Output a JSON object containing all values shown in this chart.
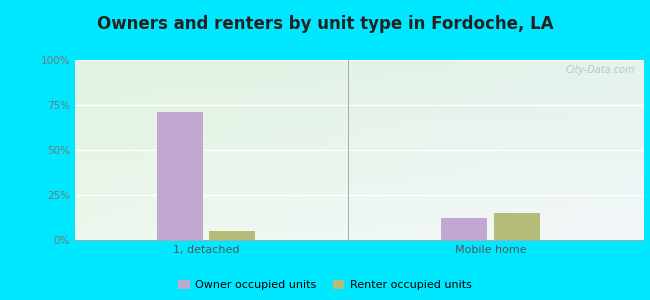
{
  "title": "Owners and renters by unit type in Fordoche, LA",
  "categories": [
    "1, detached",
    "Mobile home"
  ],
  "owner_values": [
    71,
    12
  ],
  "renter_values": [
    5,
    15
  ],
  "owner_color": "#c2a8d0",
  "renter_color": "#b5bc7a",
  "yticks": [
    0,
    25,
    50,
    75,
    100
  ],
  "ytick_labels": [
    "0%",
    "25%",
    "50%",
    "75%",
    "100%"
  ],
  "ylim": [
    0,
    100
  ],
  "outer_color": "#00e8ff",
  "title_fontsize": 12,
  "legend_owner": "Owner occupied units",
  "legend_renter": "Renter occupied units",
  "watermark": "City-Data.com",
  "group_positions": [
    1.2,
    3.8
  ],
  "bar_width": 0.42,
  "xlim": [
    0,
    5.2
  ],
  "divider_x": 2.5
}
